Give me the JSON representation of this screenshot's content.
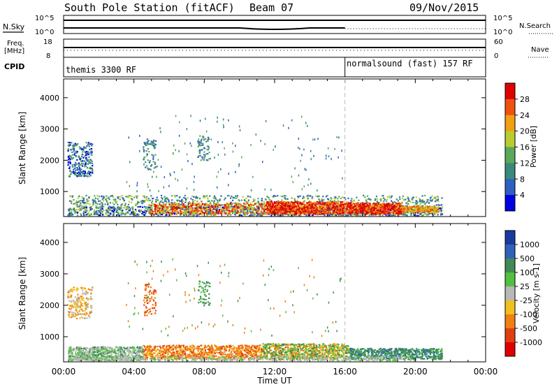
{
  "header": {
    "title": "South Pole Station (fitACF)",
    "beam": "Beam 07",
    "date": "09/Nov/2015"
  },
  "summary_panels": {
    "nsky_label": "N.Sky",
    "nsearch_label": "N.Search",
    "sky_ticks": [
      "10^5",
      "10^0"
    ],
    "freq_label_1": "Freq.",
    "freq_label_2": "[MHz]",
    "freq_ticks": [
      "18",
      "8"
    ],
    "nave_label": "Nave",
    "nave_ticks": [
      "60",
      "0"
    ],
    "cpid_label": "CPID",
    "cpid_segments": [
      {
        "label": "themis 3300 RF",
        "start_hour": 0
      },
      {
        "label": "normalsound (fast) 157 RF",
        "start_hour": 16
      }
    ]
  },
  "chart_data": [
    {
      "type": "heatmap",
      "name": "power",
      "x_label": "Time UT",
      "xlim": [
        0,
        24
      ],
      "x_tick_labels": [
        "00:00",
        "04:00",
        "08:00",
        "12:00",
        "16:00",
        "20:00",
        "00:00"
      ],
      "ylabel": "Slant Range [km]",
      "ylim": [
        200,
        4600
      ],
      "y_ticks": [
        1000,
        2000,
        3000,
        4000
      ],
      "colorbar_label": "Power [dB]",
      "colorbar_ticks": [
        "4",
        "8",
        "12",
        "16",
        "20",
        "24",
        "28"
      ],
      "colorbar_colors": [
        "#0000e0",
        "#2f5fc0",
        "#3a8a7a",
        "#5aa85a",
        "#b8cc30",
        "#f0a010",
        "#f05010",
        "#e00000"
      ],
      "cpid_change_hour": 16
    },
    {
      "type": "heatmap",
      "name": "velocity",
      "x_label": "Time UT",
      "xlim": [
        0,
        24
      ],
      "x_tick_labels": [
        "00:00",
        "04:00",
        "08:00",
        "12:00",
        "16:00",
        "20:00",
        "00:00"
      ],
      "ylabel": "Slant Range [km]",
      "ylim": [
        200,
        4600
      ],
      "y_ticks": [
        1000,
        2000,
        3000,
        4000
      ],
      "colorbar_label": "Velocity [m s-1]",
      "colorbar_ticks": [
        "1000",
        "500",
        "100",
        "25",
        "-25",
        "-100",
        "-500",
        "-1000"
      ],
      "colorbar_colors": [
        "#1a3aa0",
        "#2f62b8",
        "#3f8a55",
        "#52c040",
        "#b8b8b8",
        "#f0c020",
        "#f08010",
        "#e04010",
        "#e00000"
      ],
      "cpid_change_hour": 16
    }
  ],
  "xaxis_title": "Time UT"
}
